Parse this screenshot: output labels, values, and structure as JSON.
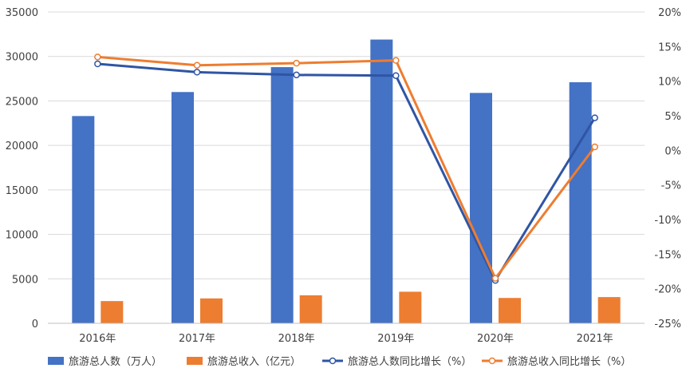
{
  "chart_data": {
    "type": "bar",
    "categories": [
      "2016年",
      "2017年",
      "2018年",
      "2019年",
      "2020年",
      "2021年"
    ],
    "series": [
      {
        "name": "旅游总人数（万人）",
        "type": "bar",
        "axis": "left",
        "color": "#4472C4",
        "values": [
          23300,
          26000,
          28800,
          31900,
          25900,
          27100
        ]
      },
      {
        "name": "旅游总收入（亿元）",
        "type": "bar",
        "axis": "left",
        "color": "#ED7D31",
        "values": [
          2500,
          2800,
          3150,
          3550,
          2850,
          2950
        ]
      },
      {
        "name": "旅游总人数同比增长（%）",
        "type": "line",
        "axis": "right",
        "color": "#2F55A4",
        "values": [
          12.5,
          11.3,
          10.9,
          10.8,
          -18.8,
          4.7
        ]
      },
      {
        "name": "旅游总收入同比增长（%）",
        "type": "line",
        "axis": "right",
        "color": "#ED7D31",
        "values": [
          13.5,
          12.3,
          12.6,
          13.0,
          -18.5,
          0.5
        ]
      }
    ],
    "y_left": {
      "min": 0,
      "max": 35000,
      "step": 5000,
      "ticks": [
        "0",
        "5000",
        "10000",
        "15000",
        "20000",
        "25000",
        "30000",
        "35000"
      ]
    },
    "y_right": {
      "min": -25,
      "max": 20,
      "step": 5,
      "ticks": [
        "-25%",
        "-20%",
        "-15%",
        "-10%",
        "-5%",
        "0%",
        "5%",
        "10%",
        "15%",
        "20%"
      ]
    },
    "grid": true,
    "legend_position": "bottom"
  }
}
